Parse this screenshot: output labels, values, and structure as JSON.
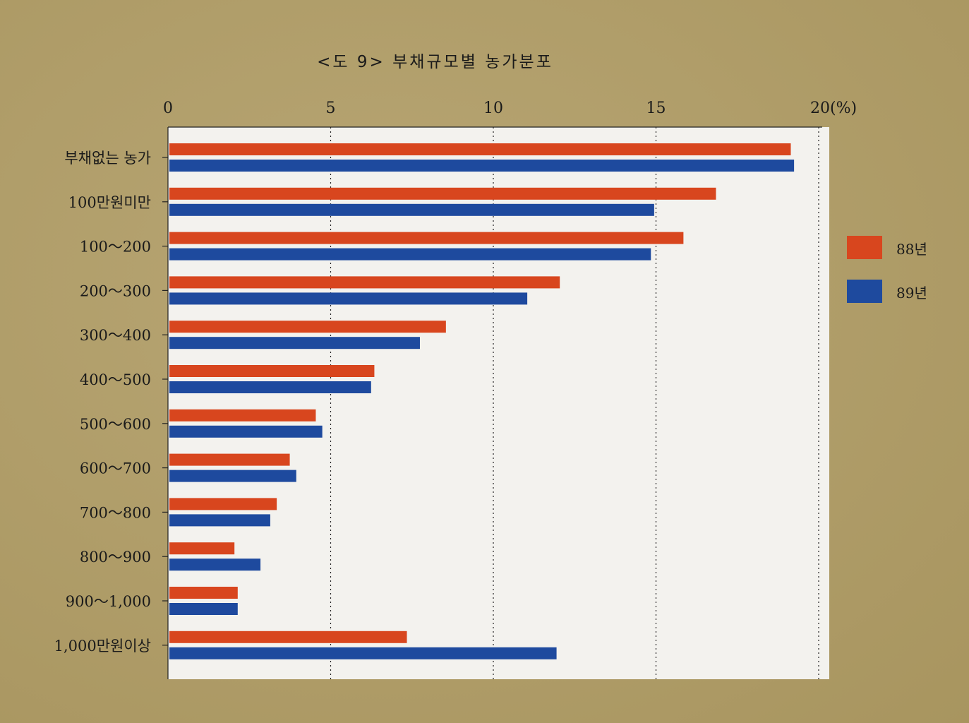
{
  "chart_data": {
    "type": "bar",
    "orientation": "horizontal",
    "title": "<도 9>  부채규모별 농가분포",
    "unit_label": "20(%)",
    "xlim": [
      0,
      20
    ],
    "x_ticks": [
      "0",
      "5",
      "10",
      "15",
      "20(%)"
    ],
    "grid": "vertical-dotted",
    "legend_position": "right",
    "categories": [
      "부채없는 농가",
      "100만원미만",
      "100～200",
      "200～300",
      "300～400",
      "400～500",
      "500～600",
      "600～700",
      "700～800",
      "800～900",
      "900～1,000",
      "1,000만원이상"
    ],
    "series": [
      {
        "name": "88년",
        "color": "#d8461e",
        "values": [
          19.1,
          16.8,
          15.8,
          12.0,
          8.5,
          6.3,
          4.5,
          3.7,
          3.3,
          2.0,
          2.1,
          7.3
        ]
      },
      {
        "name": "89년",
        "color": "#1e4a9e",
        "values": [
          19.2,
          14.9,
          14.8,
          11.0,
          7.7,
          6.2,
          4.7,
          3.9,
          3.1,
          2.8,
          2.1,
          11.9
        ]
      }
    ]
  }
}
